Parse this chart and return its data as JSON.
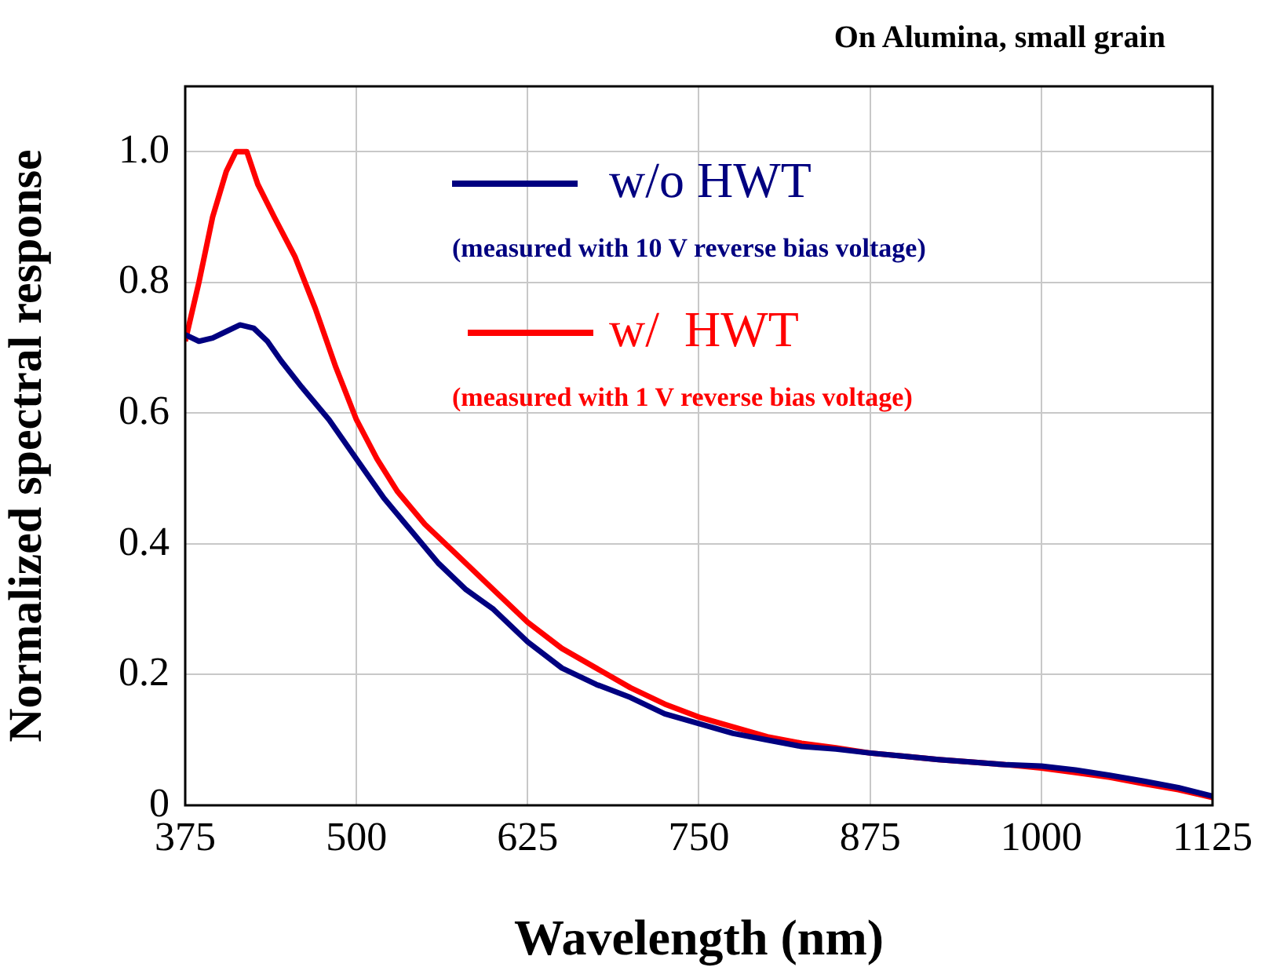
{
  "chart_data": {
    "type": "line",
    "title": "On Alumina, small grain",
    "xlabel": "Wavelength (nm)",
    "ylabel": "Normalized spectral response",
    "xlim": [
      375,
      1125
    ],
    "xticks": [
      375,
      500,
      625,
      750,
      875,
      1000,
      1125
    ],
    "ylim": [
      0,
      1.1
    ],
    "yticks": [
      0,
      0.2,
      0.4,
      0.6,
      0.8,
      {
        "value": 1,
        "label": "1.0"
      }
    ],
    "grid": true,
    "legend": "top",
    "marker": "none",
    "line_style": "solid",
    "annotations": [
      "(measured with 10 V reverse bias voltage)",
      "(measured with 1 V reverse bias voltage)"
    ],
    "series": [
      {
        "name": "w/o HWT",
        "color": "#000080",
        "x": [
          375,
          385,
          395,
          405,
          415,
          425,
          435,
          445,
          460,
          480,
          500,
          520,
          540,
          560,
          580,
          600,
          625,
          650,
          675,
          700,
          725,
          750,
          775,
          800,
          825,
          850,
          875,
          900,
          925,
          950,
          975,
          1000,
          1025,
          1050,
          1075,
          1100,
          1125
        ],
        "values": [
          0.72,
          0.71,
          0.715,
          0.725,
          0.735,
          0.73,
          0.71,
          0.68,
          0.64,
          0.59,
          0.53,
          0.47,
          0.42,
          0.37,
          0.33,
          0.3,
          0.25,
          0.21,
          0.185,
          0.165,
          0.14,
          0.125,
          0.11,
          0.1,
          0.09,
          0.086,
          0.08,
          0.075,
          0.07,
          0.066,
          0.062,
          0.06,
          0.054,
          0.046,
          0.037,
          0.027,
          0.014
        ]
      },
      {
        "name": "w/  HWT",
        "color": "#ff0000",
        "x": [
          375,
          385,
          395,
          405,
          412,
          420,
          428,
          440,
          455,
          470,
          485,
          500,
          515,
          530,
          550,
          575,
          600,
          625,
          650,
          675,
          700,
          725,
          750,
          775,
          800,
          825,
          850,
          875,
          900,
          925,
          950,
          975,
          1000,
          1025,
          1050,
          1075,
          1100,
          1125
        ],
        "values": [
          0.71,
          0.8,
          0.9,
          0.97,
          1.0,
          1.0,
          0.95,
          0.9,
          0.84,
          0.76,
          0.67,
          0.59,
          0.53,
          0.48,
          0.43,
          0.38,
          0.33,
          0.28,
          0.24,
          0.21,
          0.18,
          0.155,
          0.135,
          0.12,
          0.105,
          0.095,
          0.088,
          0.08,
          0.075,
          0.07,
          0.066,
          0.062,
          0.057,
          0.05,
          0.043,
          0.033,
          0.024,
          0.012
        ]
      }
    ]
  }
}
